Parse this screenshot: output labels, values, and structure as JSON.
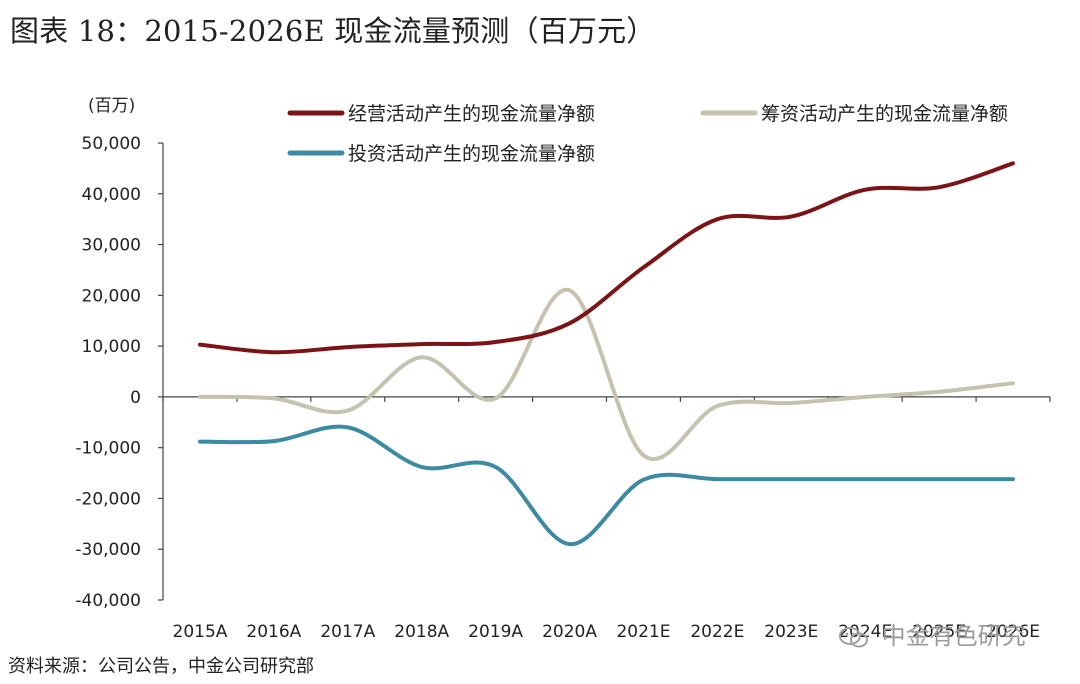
{
  "title": "图表 18：2015-2026E 现金流量预测（百万元）",
  "source": "资料来源：公司公告，中金公司研究部",
  "watermark": "中金有色研究",
  "chart_data": {
    "type": "line",
    "unit_label": "(百万)",
    "categories": [
      "2015A",
      "2016A",
      "2017A",
      "2018A",
      "2019A",
      "2020A",
      "2021E",
      "2022E",
      "2023E",
      "2024E",
      "2025E",
      "2026E"
    ],
    "ylim": [
      -40000,
      50000
    ],
    "yticks": [
      -40000,
      -30000,
      -20000,
      -10000,
      0,
      10000,
      20000,
      30000,
      40000,
      50000
    ],
    "ytick_labels": [
      "-40,000",
      "-30,000",
      "-20,000",
      "-10,000",
      "0",
      "10,000",
      "20,000",
      "30,000",
      "40,000",
      "50,000"
    ],
    "legend_placement": "top",
    "series": [
      {
        "name": "经营活动产生的现金流量净额",
        "color": "#7b1416",
        "values": [
          10300,
          8800,
          9800,
          10400,
          10800,
          14500,
          25500,
          35000,
          35500,
          40800,
          41300,
          46000
        ]
      },
      {
        "name": "筹资活动产生的现金流量净额",
        "color": "#c5c2b0",
        "values": [
          0,
          -300,
          -2700,
          7800,
          -300,
          21000,
          -11500,
          -1800,
          -1200,
          0,
          1000,
          2700
        ]
      },
      {
        "name": "投资活动产生的现金流量净额",
        "color": "#3c8aa3",
        "values": [
          -8800,
          -8700,
          -6000,
          -13800,
          -13800,
          -29000,
          -16300,
          -16200,
          -16200,
          -16200,
          -16200,
          -16200
        ]
      }
    ]
  }
}
